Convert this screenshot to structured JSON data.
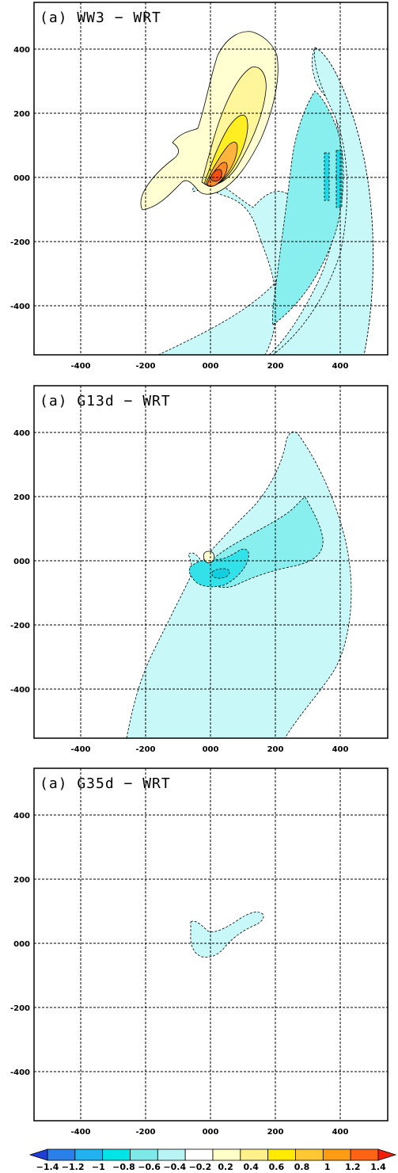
{
  "chart_data": [
    {
      "type": "heatmap",
      "title": "(a) WW3 − WRT",
      "x_ticks": [
        "-400",
        "-200",
        "000",
        "200",
        "400"
      ],
      "y_ticks": [
        "400",
        "200",
        "000",
        "-200",
        "-400"
      ],
      "xlim": [
        -540,
        540
      ],
      "ylim": [
        -550,
        550
      ],
      "grid": true
    },
    {
      "type": "heatmap",
      "title": "(a) G13d − WRT",
      "x_ticks": [
        "-400",
        "-200",
        "000",
        "200",
        "400"
      ],
      "y_ticks": [
        "400",
        "200",
        "000",
        "-200",
        "-400"
      ],
      "xlim": [
        -540,
        540
      ],
      "ylim": [
        -550,
        550
      ],
      "grid": true
    },
    {
      "type": "heatmap",
      "title": "(a) G35d − WRT",
      "x_ticks": [
        "-400",
        "-200",
        "000",
        "200",
        "400"
      ],
      "y_ticks": [
        "400",
        "200",
        "000",
        "-200",
        "-400"
      ],
      "xlim": [
        -540,
        540
      ],
      "ylim": [
        -550,
        550
      ],
      "grid": true
    }
  ],
  "colorbar": {
    "labels": [
      "−1.4",
      "−1.2",
      "−1",
      "−0.8",
      "−0.6",
      "−0.4",
      "−0.2",
      "0.2",
      "0.4",
      "0.6",
      "0.8",
      "1",
      "1.2",
      "1.4"
    ],
    "colors": [
      "#1f3fd6",
      "#2a7fe8",
      "#21b2f0",
      "#00e6e6",
      "#7fe8e8",
      "#b8f4f4",
      "#ffffff",
      "#ffffc8",
      "#fff08c",
      "#ffea00",
      "#ffc832",
      "#ff9c14",
      "#ff6414",
      "#f01e0a"
    ]
  }
}
